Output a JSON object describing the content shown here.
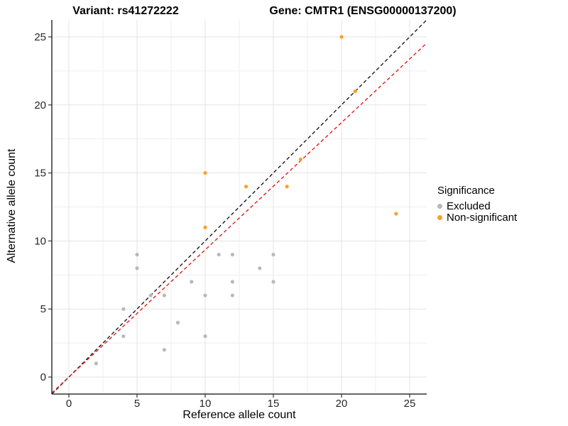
{
  "figure": {
    "title_left": "Variant: rs41272222",
    "title_right": "Gene: CMTR1 (ENSG00000137200)",
    "x_axis": {
      "label": "Reference allele count"
    },
    "y_axis": {
      "label": "Alternative allele count"
    },
    "background": "#FFFFFF"
  },
  "legend": {
    "title": "Significance",
    "items": [
      {
        "label": "Excluded",
        "color": "#B9B9B9"
      },
      {
        "label": "Non-significant",
        "color": "#F9A02B"
      }
    ]
  },
  "chart_data": {
    "type": "scatter",
    "title": "Variant: rs41272222 | Gene: CMTR1 (ENSG00000137200)",
    "xlabel": "Reference allele count",
    "ylabel": "Alternative allele count",
    "xlim": [
      -1.25,
      26.25
    ],
    "ylim": [
      -1.25,
      26.25
    ],
    "x_ticks": [
      0,
      5,
      10,
      15,
      20,
      25
    ],
    "y_ticks": [
      0,
      5,
      10,
      15,
      20,
      25
    ],
    "minor_ticks": [
      2.5,
      7.5,
      12.5,
      17.5,
      22.5
    ],
    "grid": true,
    "legend_title": "Significance",
    "legend_position": "right",
    "series": [
      {
        "name": "Excluded",
        "color": "#B9B9B9",
        "points": [
          [
            2,
            1
          ],
          [
            4,
            3
          ],
          [
            4,
            5
          ],
          [
            5,
            8
          ],
          [
            5,
            9
          ],
          [
            6,
            6
          ],
          [
            7,
            2
          ],
          [
            7,
            6
          ],
          [
            8,
            4
          ],
          [
            9,
            7
          ],
          [
            10,
            3
          ],
          [
            10,
            6
          ],
          [
            11,
            9
          ],
          [
            12,
            6
          ],
          [
            12,
            7
          ],
          [
            12,
            9
          ],
          [
            14,
            8
          ],
          [
            15,
            7
          ],
          [
            15,
            9
          ]
        ]
      },
      {
        "name": "Non-significant",
        "color": "#F9A02B",
        "points": [
          [
            10,
            11
          ],
          [
            10,
            15
          ],
          [
            13,
            14
          ],
          [
            16,
            14
          ],
          [
            17,
            16
          ],
          [
            20,
            25
          ],
          [
            21,
            21
          ],
          [
            24,
            12
          ]
        ]
      }
    ],
    "lines": [
      {
        "name": "identity-line",
        "slope": 1.0,
        "intercept": 0,
        "color": "#1A1A1A",
        "style": "dashed"
      },
      {
        "name": "fit-line",
        "slope": 0.935,
        "intercept": 0,
        "color": "#DE1F1F",
        "style": "dashed"
      }
    ],
    "colors": {
      "grid_major": "#E3E3E3",
      "grid_minor": "#EFEFEF",
      "axis_line": "#333333",
      "tick_label": "#262626"
    }
  }
}
